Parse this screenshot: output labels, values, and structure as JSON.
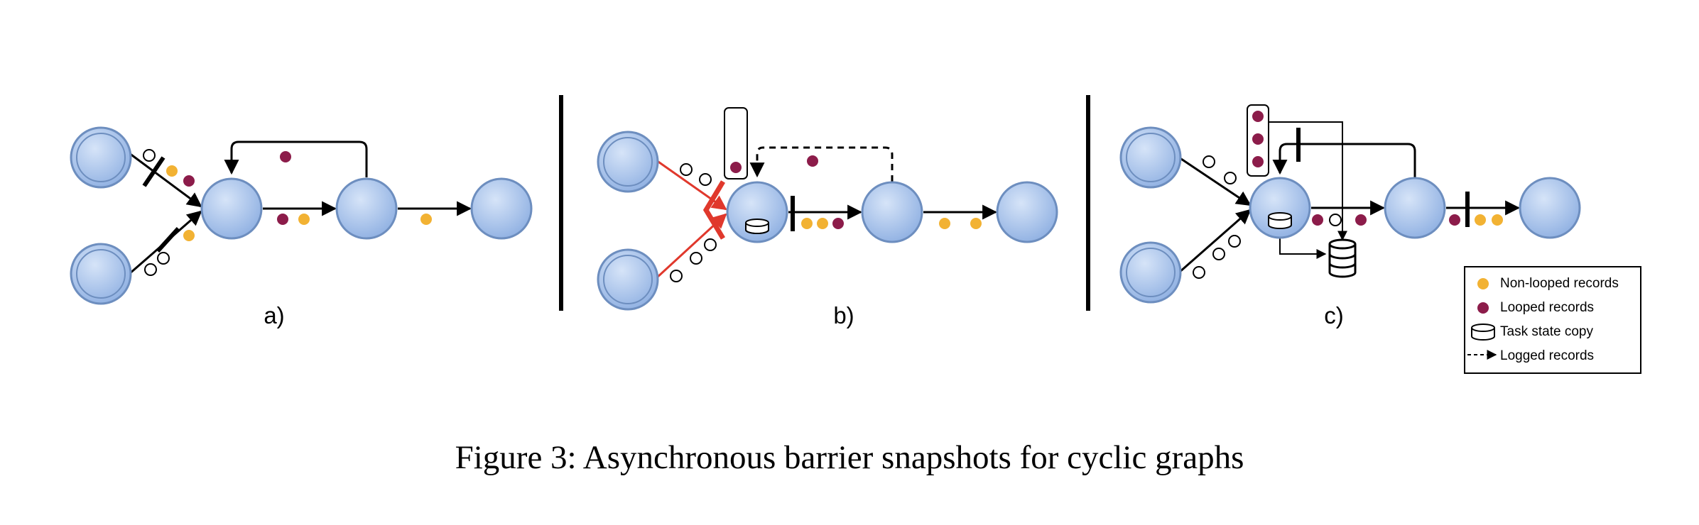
{
  "figure": {
    "panels": [
      {
        "label": "a)"
      },
      {
        "label": "b)"
      },
      {
        "label": "c)"
      }
    ],
    "legend": {
      "items": [
        {
          "label": "Non-looped records",
          "symbol": "orange-dot-icon"
        },
        {
          "label": "Looped records",
          "symbol": "maroon-dot-icon"
        },
        {
          "label": "Task state copy",
          "symbol": "cylinder-icon"
        },
        {
          "label": "Logged records",
          "symbol": "dashed-arrow-icon"
        }
      ]
    },
    "caption": "Figure 3: Asynchronous barrier snapshots for cyclic graphs"
  },
  "colors": {
    "node_fill": "#a4c2ec",
    "node_stroke": "#6d8ebf",
    "non_looped": "#f2b233",
    "looped": "#8c1c4a",
    "alignment": "#e0382c"
  }
}
